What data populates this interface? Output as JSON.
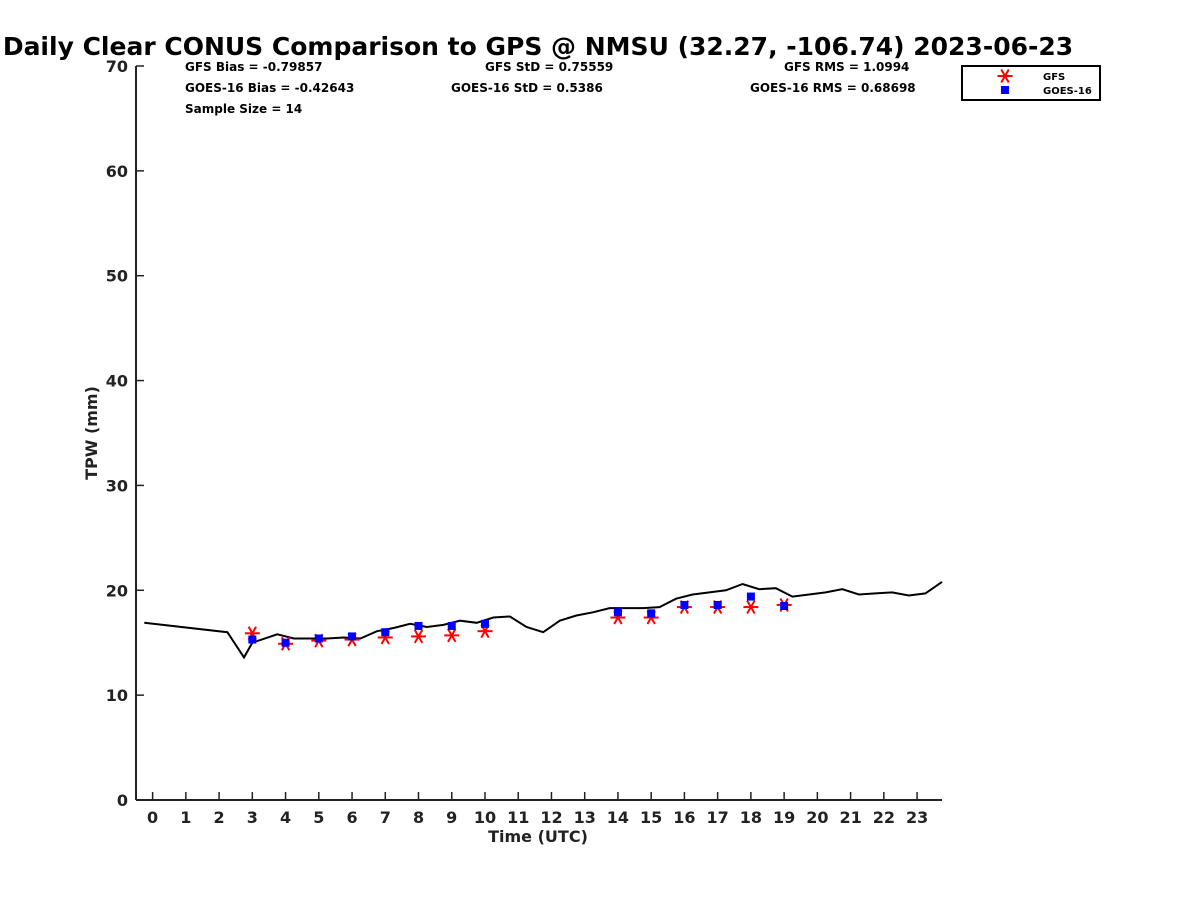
{
  "chart_data": {
    "type": "line+scatter",
    "title": "Daily Clear CONUS Comparison to GPS @ NMSU (32.27, -106.74) 2023-06-23",
    "xlabel": "Time (UTC)",
    "ylabel": "TPW (mm)",
    "xlim": [
      -0.5,
      23.75
    ],
    "ylim": [
      0,
      70
    ],
    "xticks": [
      "0",
      "1",
      "2",
      "3",
      "4",
      "5",
      "6",
      "7",
      "8",
      "9",
      "10",
      "11",
      "12",
      "13",
      "14",
      "15",
      "16",
      "17",
      "18",
      "19",
      "20",
      "21",
      "22",
      "23"
    ],
    "yticks": [
      "0",
      "10",
      "20",
      "30",
      "40",
      "50",
      "60",
      "70"
    ],
    "grid": false,
    "legend_position": "top-right",
    "stats": [
      [
        "GFS Bias = -0.79857",
        "GFS StD = 0.75559",
        "GFS RMS = 1.0994"
      ],
      [
        "GOES-16 Bias = -0.42643",
        "GOES-16 StD = 0.5386",
        "GOES-16 RMS = 0.68698"
      ],
      [
        "Sample Size = 14"
      ]
    ],
    "series": [
      {
        "kind": "line",
        "color": "#000000",
        "x": [
          -0.25,
          2.25,
          2.75,
          3.0,
          3.75,
          4.25,
          4.75,
          5.25,
          5.75,
          6.25,
          6.75,
          7.25,
          7.75,
          8.25,
          8.75,
          9.25,
          9.75,
          10.25,
          10.75,
          11.25,
          11.75,
          12.25,
          12.75,
          13.25,
          13.75,
          14.25,
          14.75,
          15.25,
          15.75,
          16.25,
          16.75,
          17.25,
          17.75,
          18.25,
          18.75,
          19.25,
          19.75,
          20.25,
          20.75,
          21.25,
          21.75,
          22.25,
          22.75,
          23.25,
          23.75
        ],
        "y": [
          16.9,
          16.0,
          13.6,
          15.0,
          15.8,
          15.4,
          15.4,
          15.4,
          15.5,
          15.4,
          16.1,
          16.4,
          16.8,
          16.5,
          16.7,
          17.1,
          16.9,
          17.4,
          17.5,
          16.5,
          16.0,
          17.1,
          17.6,
          17.9,
          18.3,
          18.3,
          18.3,
          18.4,
          19.2,
          19.6,
          19.8,
          20.0,
          20.6,
          20.1,
          20.2,
          19.4,
          19.6,
          19.8,
          20.1,
          19.6,
          19.7,
          19.8,
          19.5,
          19.7,
          20.8
        ]
      },
      {
        "name": "GFS",
        "kind": "scatter",
        "marker": "asterisk",
        "color": "#ff0000",
        "x": [
          3,
          4,
          5,
          6,
          7,
          8,
          9,
          10,
          14,
          15,
          16,
          17,
          18,
          19
        ],
        "y": [
          15.9,
          14.9,
          15.2,
          15.3,
          15.5,
          15.6,
          15.7,
          16.1,
          17.4,
          17.4,
          18.4,
          18.4,
          18.4,
          18.6
        ]
      },
      {
        "name": "GOES-16",
        "kind": "scatter",
        "marker": "square",
        "color": "#0000ff",
        "x": [
          3,
          4,
          5,
          6,
          7,
          8,
          9,
          10,
          14,
          15,
          16,
          17,
          18,
          19
        ],
        "y": [
          15.3,
          15.0,
          15.4,
          15.6,
          16.0,
          16.6,
          16.6,
          16.8,
          17.9,
          17.8,
          18.6,
          18.6,
          19.4,
          18.5
        ]
      }
    ]
  }
}
